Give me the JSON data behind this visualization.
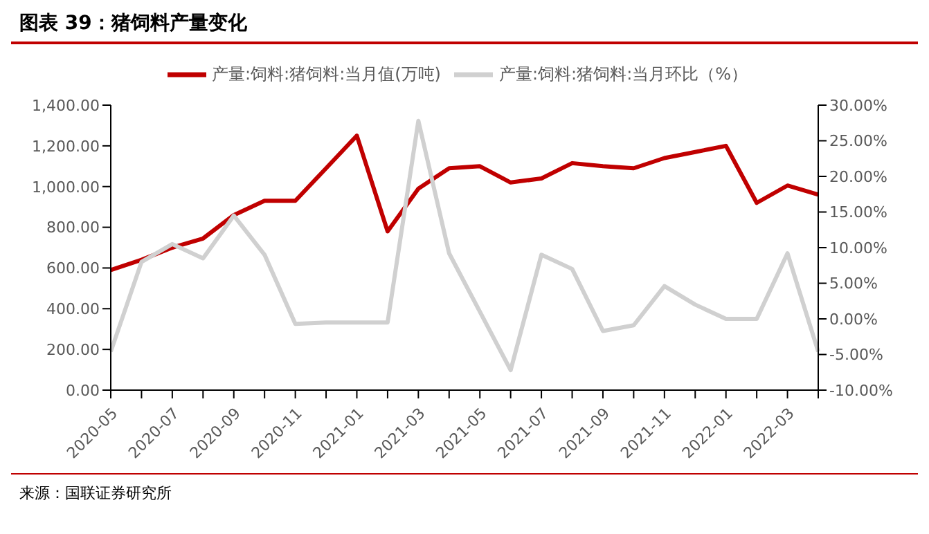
{
  "chart_data": {
    "type": "line",
    "title": "图表 39：猪饲料产量变化",
    "annotations": [
      "来源：国联证券研究所"
    ],
    "categories": [
      "2020-05",
      null,
      "2020-07",
      null,
      "2020-09",
      null,
      "2020-11",
      null,
      "2021-01",
      null,
      "2021-03",
      null,
      "2021-05",
      null,
      "2021-07",
      null,
      "2021-09",
      null,
      "2021-11",
      null,
      "2022-01",
      null,
      "2022-03",
      null
    ],
    "series": [
      {
        "name": "产量:饲料:猪饲料:当月值(万吨)",
        "color": "#c00000",
        "values": [
          590,
          640,
          700,
          745,
          860,
          930,
          930,
          1090,
          1250,
          780,
          990,
          1090,
          1100,
          1020,
          1040,
          1115,
          1100,
          1090,
          1140,
          1170,
          1200,
          920,
          1005,
          960
        ]
      },
      {
        "name": "产量:饲料:猪饲料:当月环比（%）",
        "color": "#d0d0d0",
        "axis": "y2",
        "values": [
          -4.6,
          8,
          10.5,
          8.5,
          14.5,
          9,
          -0.7,
          -0.5,
          -0.5,
          -0.5,
          27.8,
          9.2,
          1,
          -7.2,
          9,
          7,
          -1.7,
          -0.9,
          4.6,
          2,
          0,
          0,
          9.2,
          -4.6
        ]
      }
    ],
    "ylim": [
      0,
      1400
    ],
    "yticks": [
      {
        "value": 0,
        "label": "0.00"
      },
      {
        "value": 200,
        "label": "200.00"
      },
      {
        "value": 400,
        "label": "400.00"
      },
      {
        "value": 600,
        "label": "600.00"
      },
      {
        "value": 800,
        "label": "800.00"
      },
      {
        "value": 1000,
        "label": "1,000.00"
      },
      {
        "value": 1200,
        "label": "1,200.00"
      },
      {
        "value": 1400,
        "label": "1,400.00"
      }
    ],
    "y2lim": [
      -10,
      30
    ],
    "y2ticks": [
      {
        "value": -10,
        "label": "-10.00%"
      },
      {
        "value": -5,
        "label": "-5.00%"
      },
      {
        "value": 0,
        "label": "0.00%"
      },
      {
        "value": 5,
        "label": "5.00%"
      },
      {
        "value": 10,
        "label": "10.00%"
      },
      {
        "value": 15,
        "label": "15.00%"
      },
      {
        "value": 20,
        "label": "20.00%"
      },
      {
        "value": 25,
        "label": "25.00%"
      },
      {
        "value": 30,
        "label": "30.00%"
      }
    ],
    "grid": false,
    "legend": "top",
    "marker": "none",
    "line_style": "solid"
  }
}
